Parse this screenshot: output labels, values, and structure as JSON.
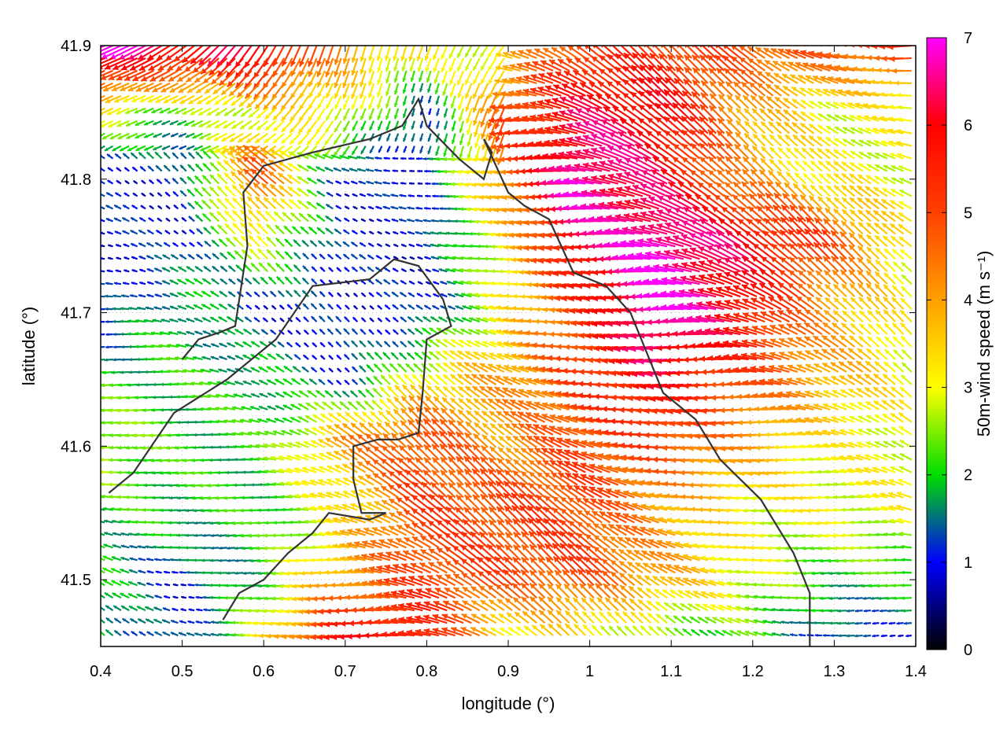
{
  "chart_data": {
    "type": "vector-field",
    "xlabel": "longitude (°)",
    "ylabel": "latitude (°)",
    "colorbar_label": "50m-wind speed (m s⁻¹)",
    "xlim": [
      0.4,
      1.4
    ],
    "ylim": [
      41.45,
      41.9
    ],
    "x_ticks": [
      "0.4",
      "0.5",
      "0.6",
      "0.7",
      "0.8",
      "0.9",
      "1",
      "1.1",
      "1.2",
      "1.3",
      "1.4"
    ],
    "y_ticks": [
      "41.5",
      "41.6",
      "41.7",
      "41.8",
      "41.9"
    ],
    "colorbar_range": [
      0,
      7
    ],
    "colorbar_ticks": [
      "0",
      "1",
      "2",
      "3",
      "4",
      "5",
      "6",
      "7"
    ],
    "colormap": [
      "#000000",
      "#0000ff",
      "#00e000",
      "#ffff00",
      "#ff9900",
      "#ff0000",
      "#ff00ff"
    ],
    "grid": true,
    "coastline_color": "#333333",
    "speed_field": {
      "longitudes": [
        0.4,
        0.5,
        0.6,
        0.7,
        0.8,
        0.9,
        1.0,
        1.1,
        1.2,
        1.3,
        1.4
      ],
      "latitudes": [
        41.9,
        41.85,
        41.8,
        41.75,
        41.7,
        41.65,
        41.6,
        41.55,
        41.5,
        41.45
      ],
      "rows": [
        [
          7,
          6,
          6,
          4,
          3,
          3,
          5,
          5,
          5,
          5,
          5
        ],
        [
          3,
          2,
          3,
          3,
          1,
          5,
          6,
          6,
          4,
          3,
          3
        ],
        [
          1,
          1,
          5,
          1,
          1,
          4,
          7,
          6,
          4,
          3,
          3
        ],
        [
          1,
          1,
          3,
          1,
          1,
          3,
          6,
          7,
          6,
          5,
          3
        ],
        [
          1,
          2,
          1,
          1,
          1,
          3,
          5,
          7,
          6,
          4,
          3
        ],
        [
          2,
          2,
          2,
          1,
          3,
          4,
          5,
          6,
          5,
          4,
          3
        ],
        [
          3,
          2,
          2,
          4,
          5,
          4,
          5,
          5,
          4,
          3,
          3
        ],
        [
          2,
          2,
          2,
          3,
          5,
          5,
          5,
          4,
          3,
          3,
          3
        ],
        [
          2,
          1,
          2,
          4,
          5,
          5,
          5,
          4,
          3,
          2,
          2
        ],
        [
          2,
          1,
          3,
          6,
          6,
          3,
          3,
          2,
          2,
          1,
          1
        ]
      ]
    },
    "coastlines": [
      [
        [
          0.41,
          41.565
        ],
        [
          0.44,
          41.58
        ],
        [
          0.49,
          41.625
        ],
        [
          0.555,
          41.65
        ],
        [
          0.615,
          41.68
        ],
        [
          0.66,
          41.72
        ],
        [
          0.73,
          41.725
        ],
        [
          0.76,
          41.74
        ],
        [
          0.79,
          41.735
        ],
        [
          0.82,
          41.71
        ],
        [
          0.83,
          41.69
        ],
        [
          0.8,
          41.68
        ],
        [
          0.795,
          41.64
        ],
        [
          0.79,
          41.61
        ],
        [
          0.765,
          41.605
        ],
        [
          0.74,
          41.605
        ],
        [
          0.71,
          41.6
        ],
        [
          0.71,
          41.575
        ],
        [
          0.72,
          41.55
        ],
        [
          0.75,
          41.55
        ],
        [
          0.73,
          41.545
        ],
        [
          0.68,
          41.55
        ],
        [
          0.66,
          41.535
        ],
        [
          0.63,
          41.52
        ],
        [
          0.6,
          41.5
        ],
        [
          0.57,
          41.49
        ],
        [
          0.55,
          41.47
        ]
      ],
      [
        [
          0.5,
          41.665
        ],
        [
          0.52,
          41.68
        ],
        [
          0.545,
          41.685
        ],
        [
          0.565,
          41.69
        ],
        [
          0.57,
          41.71
        ],
        [
          0.58,
          41.75
        ],
        [
          0.575,
          41.79
        ],
        [
          0.6,
          41.81
        ],
        [
          0.66,
          41.82
        ],
        [
          0.73,
          41.83
        ],
        [
          0.77,
          41.84
        ],
        [
          0.79,
          41.86
        ],
        [
          0.8,
          41.84
        ],
        [
          0.84,
          41.815
        ],
        [
          0.87,
          41.8
        ],
        [
          0.88,
          41.82
        ],
        [
          0.87,
          41.83
        ],
        [
          0.9,
          41.79
        ],
        [
          0.92,
          41.78
        ],
        [
          0.95,
          41.77
        ],
        [
          0.98,
          41.73
        ],
        [
          1.02,
          41.72
        ],
        [
          1.05,
          41.7
        ],
        [
          1.07,
          41.67
        ],
        [
          1.09,
          41.64
        ],
        [
          1.13,
          41.62
        ],
        [
          1.16,
          41.59
        ],
        [
          1.21,
          41.56
        ],
        [
          1.25,
          41.52
        ],
        [
          1.27,
          41.49
        ],
        [
          1.27,
          41.45
        ]
      ]
    ]
  }
}
